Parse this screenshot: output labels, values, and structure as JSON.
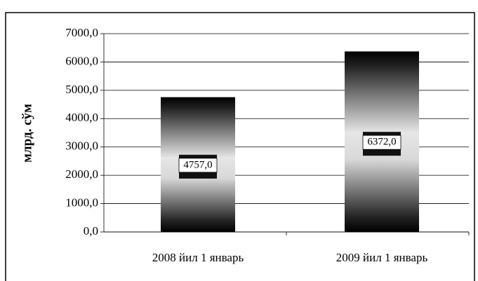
{
  "chart_data": {
    "type": "bar",
    "ylabel": "млрд. сўм",
    "categories": [
      "2008 йил 1 январь",
      "2009 йил 1 январь"
    ],
    "values": [
      4757,
      6372
    ],
    "value_labels": [
      "4757,0",
      "6372,0"
    ],
    "color": "#000000",
    "ylim": [
      0,
      7000
    ],
    "yticks": [
      {
        "value": 0,
        "label": "0,0"
      },
      {
        "value": 1000,
        "label": "1000,0"
      },
      {
        "value": 2000,
        "label": "2000,0"
      },
      {
        "value": 3000,
        "label": "3000,0"
      },
      {
        "value": 4000,
        "label": "4000,0"
      },
      {
        "value": 5000,
        "label": "5000,0"
      },
      {
        "value": 6000,
        "label": "6000,0"
      },
      {
        "value": 7000,
        "label": "7000,0"
      }
    ],
    "grid": true
  }
}
